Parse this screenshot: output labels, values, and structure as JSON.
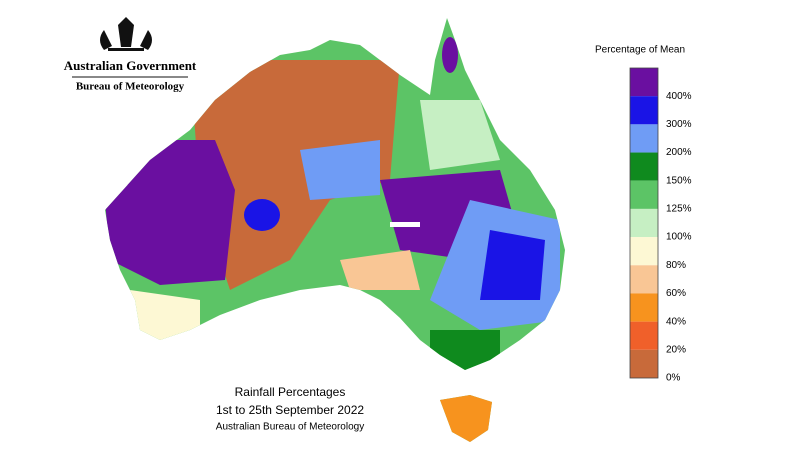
{
  "header": {
    "government": "Australian Government",
    "agency": "Bureau of Meteorology"
  },
  "map_title": {
    "title": "Rainfall Percentages",
    "period": "1st to 25th September 2022",
    "source": "Australian Bureau of Meteorology"
  },
  "legend": {
    "title": "Percentage of Mean",
    "bands": [
      {
        "color": "#6a0fa0",
        "label": "400%"
      },
      {
        "color": "#1a14e6",
        "label": "300%"
      },
      {
        "color": "#6f9cf5",
        "label": "200%"
      },
      {
        "color": "#0f8a1e",
        "label": "150%"
      },
      {
        "color": "#5cc466",
        "label": "125%"
      },
      {
        "color": "#c6efc3",
        "label": "100%"
      },
      {
        "color": "#fdf8d4",
        "label": "80%"
      },
      {
        "color": "#f9c695",
        "label": "60%"
      },
      {
        "color": "#f7931e",
        "label": "40%"
      },
      {
        "color": "#f0602a",
        "label": "20%"
      },
      {
        "color": "#c86a3a",
        "label": "0%"
      }
    ]
  }
}
